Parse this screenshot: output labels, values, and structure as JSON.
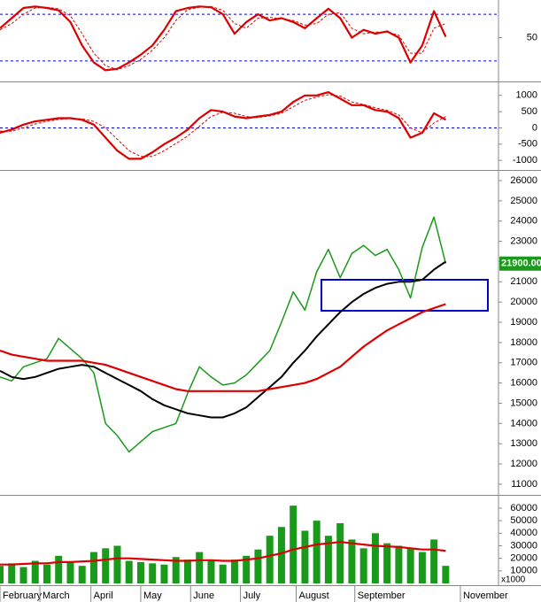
{
  "chart_data": [
    {
      "type": "line",
      "xlim": [
        0,
        170
      ],
      "ylim": [
        -4,
        96
      ],
      "yticks": [
        50
      ],
      "ref_lines": [
        80,
        20
      ],
      "x": [
        0,
        4,
        8,
        12,
        16,
        20,
        24,
        28,
        32,
        36,
        40,
        44,
        48,
        52,
        56,
        60,
        64,
        68,
        72,
        76,
        80,
        84,
        88,
        92,
        96,
        100,
        104,
        108,
        112,
        116,
        120,
        124,
        128,
        132,
        136,
        140,
        144,
        148,
        152
      ],
      "series": [
        {
          "type": "line",
          "color": "#dd0000",
          "line_width": 2.2,
          "dashed": false,
          "values": [
            62,
            75,
            88,
            90,
            88,
            85,
            70,
            40,
            18,
            8,
            10,
            18,
            28,
            40,
            60,
            84,
            88,
            90,
            89,
            80,
            55,
            70,
            80,
            72,
            75,
            70,
            62,
            75,
            87,
            75,
            50,
            60,
            55,
            58,
            50,
            18,
            40,
            84,
            51
          ]
        },
        {
          "type": "line",
          "color": "#dd0000",
          "line_width": 1,
          "dashed": true,
          "values": [
            60,
            68,
            80,
            88,
            89,
            87,
            78,
            55,
            30,
            14,
            9,
            14,
            22,
            34,
            50,
            72,
            86,
            89,
            90,
            85,
            68,
            62,
            75,
            76,
            74,
            72,
            66,
            68,
            80,
            82,
            62,
            55,
            57,
            57,
            53,
            30,
            30,
            62,
            68
          ]
        }
      ]
    },
    {
      "type": "line",
      "xlim": [
        0,
        170
      ],
      "ylim": [
        -1240,
        1320
      ],
      "yticks": [
        1000,
        500,
        0,
        -500,
        -1000
      ],
      "ref_lines": [
        0
      ],
      "x": [
        0,
        4,
        8,
        12,
        16,
        20,
        24,
        28,
        32,
        36,
        40,
        44,
        48,
        52,
        56,
        60,
        64,
        68,
        72,
        76,
        80,
        84,
        88,
        92,
        96,
        100,
        104,
        108,
        112,
        116,
        120,
        124,
        128,
        132,
        136,
        140,
        144,
        148,
        152
      ],
      "series": [
        {
          "type": "line",
          "color": "#dd0000",
          "line_width": 2.2,
          "dashed": false,
          "values": [
            -150,
            -50,
            100,
            200,
            250,
            300,
            300,
            250,
            100,
            -300,
            -700,
            -950,
            -950,
            -750,
            -500,
            -300,
            -50,
            300,
            550,
            500,
            350,
            300,
            350,
            400,
            500,
            800,
            1000,
            1000,
            1100,
            900,
            700,
            700,
            550,
            500,
            300,
            -300,
            -150,
            450,
            250
          ]
        },
        {
          "type": "line",
          "color": "#dd0000",
          "line_width": 1,
          "dashed": true,
          "values": [
            -100,
            -100,
            0,
            120,
            200,
            260,
            290,
            280,
            200,
            0,
            -350,
            -700,
            -880,
            -880,
            -700,
            -480,
            -250,
            50,
            350,
            480,
            450,
            350,
            320,
            370,
            450,
            650,
            850,
            950,
            1020,
            980,
            800,
            720,
            620,
            540,
            400,
            0,
            -150,
            150,
            350
          ]
        }
      ]
    },
    {
      "type": "line",
      "xlim": [
        0,
        170
      ],
      "ylim": [
        10560,
        26350
      ],
      "yticks": [
        26000,
        25000,
        24000,
        23000,
        22000,
        21000,
        20000,
        19000,
        18000,
        17000,
        16000,
        15000,
        14000,
        13000,
        12000,
        11000
      ],
      "last_label": "21900.00",
      "x": [
        0,
        4,
        8,
        12,
        16,
        20,
        24,
        28,
        32,
        36,
        40,
        44,
        48,
        52,
        56,
        60,
        64,
        68,
        72,
        76,
        80,
        84,
        88,
        92,
        96,
        100,
        104,
        108,
        112,
        116,
        120,
        124,
        128,
        132,
        136,
        140,
        144,
        148,
        152
      ],
      "series": [
        {
          "type": "line",
          "color": "#1a9a1a",
          "line_width": 1.5,
          "dashed": false,
          "values": [
            16300,
            16100,
            16800,
            17000,
            17200,
            18200,
            17700,
            17200,
            16500,
            14000,
            13400,
            12600,
            13100,
            13600,
            13800,
            14000,
            15500,
            16800,
            16300,
            15900,
            16000,
            16400,
            17000,
            17600,
            19000,
            20500,
            19600,
            21500,
            22600,
            21200,
            22400,
            22800,
            22300,
            22600,
            21600,
            20200,
            22700,
            24200,
            21900
          ]
        },
        {
          "type": "line",
          "color": "#000000",
          "line_width": 2,
          "dashed": false,
          "values": [
            16600,
            16300,
            16200,
            16300,
            16500,
            16700,
            16800,
            16900,
            16800,
            16500,
            16200,
            15900,
            15600,
            15200,
            14900,
            14700,
            14500,
            14400,
            14300,
            14300,
            14500,
            14800,
            15300,
            15800,
            16300,
            17000,
            17600,
            18300,
            18900,
            19500,
            20000,
            20400,
            20700,
            20900,
            21000,
            21000,
            21100,
            21600,
            22000
          ]
        },
        {
          "type": "line",
          "color": "#dd0000",
          "line_width": 2.2,
          "dashed": false,
          "values": [
            17600,
            17400,
            17300,
            17200,
            17100,
            17100,
            17100,
            17100,
            17000,
            16900,
            16700,
            16500,
            16300,
            16100,
            15900,
            15700,
            15600,
            15600,
            15600,
            15600,
            15600,
            15600,
            15600,
            15700,
            15800,
            15900,
            16000,
            16200,
            16500,
            16800,
            17300,
            17800,
            18200,
            18600,
            18900,
            19200,
            19500,
            19700,
            19900
          ]
        }
      ]
    },
    {
      "type": "bar",
      "xlim": [
        0,
        170
      ],
      "ylim": [
        0,
        68450
      ],
      "yticks": [
        60000,
        50000,
        40000,
        30000,
        20000,
        10000
      ],
      "unit_label": "x1000",
      "xticks": [
        {
          "value": 0,
          "label": "February"
        },
        {
          "value": 13.6,
          "label": "March"
        },
        {
          "value": 31,
          "label": "April"
        },
        {
          "value": 48,
          "label": "May"
        },
        {
          "value": 65,
          "label": "June"
        },
        {
          "value": 82,
          "label": "July"
        },
        {
          "value": 101,
          "label": "August"
        },
        {
          "value": 121,
          "label": "September"
        },
        {
          "value": 157,
          "label": "November"
        }
      ],
      "x": [
        0,
        4,
        8,
        12,
        16,
        20,
        24,
        28,
        32,
        36,
        40,
        44,
        48,
        52,
        56,
        60,
        64,
        68,
        72,
        76,
        80,
        84,
        88,
        92,
        96,
        100,
        104,
        108,
        112,
        116,
        120,
        124,
        128,
        132,
        136,
        140,
        144,
        148,
        152
      ],
      "series": [
        {
          "type": "bar",
          "color": "#1a9a1a",
          "values": [
            14000,
            16000,
            13000,
            18000,
            15000,
            22000,
            17000,
            14000,
            25000,
            28000,
            30000,
            18000,
            17000,
            16000,
            15000,
            21000,
            19000,
            25000,
            18000,
            15000,
            19000,
            22000,
            27000,
            38000,
            45000,
            62000,
            42000,
            50000,
            38000,
            48000,
            35000,
            28000,
            40000,
            32000,
            30000,
            28000,
            25000,
            35000,
            14000
          ]
        },
        {
          "type": "line",
          "color": "#dd0000",
          "line_width": 2.2,
          "dashed": false,
          "values": [
            15000,
            15000,
            15500,
            16000,
            16000,
            17000,
            17000,
            17500,
            18000,
            19000,
            20000,
            20000,
            19500,
            19000,
            18500,
            18000,
            18000,
            18500,
            18500,
            18000,
            18000,
            19000,
            20000,
            22000,
            24000,
            27000,
            29000,
            31000,
            32000,
            33000,
            32000,
            31000,
            30000,
            29500,
            29000,
            28000,
            27000,
            27000,
            26000
          ]
        }
      ]
    }
  ]
}
